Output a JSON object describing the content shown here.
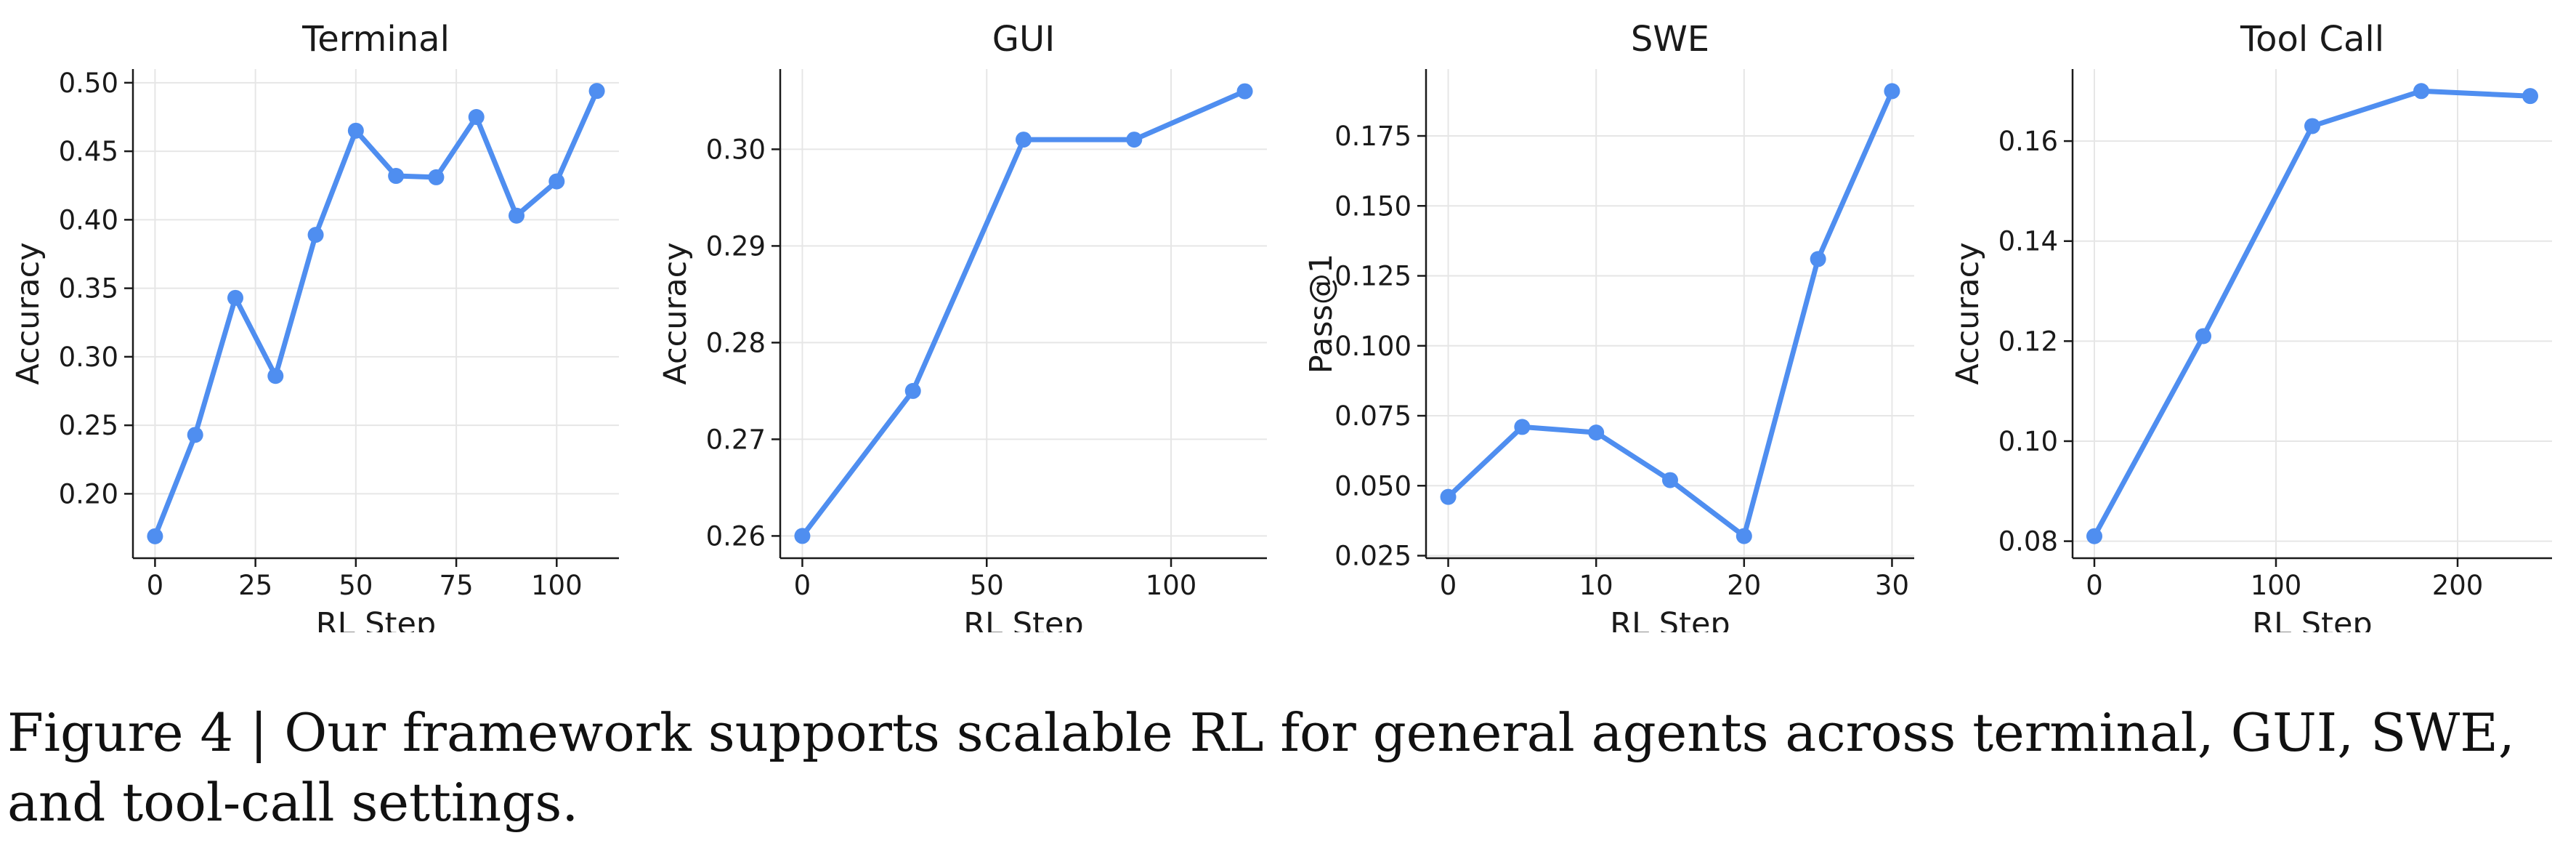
{
  "chart_data": [
    {
      "type": "line",
      "title": "Terminal",
      "xlabel": "RL Step",
      "ylabel": "Accuracy",
      "x": [
        0,
        10,
        20,
        30,
        40,
        50,
        60,
        70,
        80,
        90,
        100,
        110
      ],
      "series": [
        {
          "values": [
            0.169,
            0.243,
            0.343,
            0.286,
            0.389,
            0.465,
            0.432,
            0.431,
            0.475,
            0.403,
            0.428,
            0.494
          ]
        }
      ],
      "xlim": [
        -5.5,
        115.5
      ],
      "ylim": [
        0.153,
        0.51
      ],
      "xticks": [
        0,
        25,
        50,
        75,
        100
      ],
      "yticks": [
        0.2,
        0.25,
        0.3,
        0.35,
        0.4,
        0.45,
        0.5
      ],
      "ytick_decimals": 2,
      "grid": true
    },
    {
      "type": "line",
      "title": "GUI",
      "xlabel": "RL Step",
      "ylabel": "Accuracy",
      "x": [
        0,
        30,
        60,
        90,
        120
      ],
      "series": [
        {
          "values": [
            0.26,
            0.275,
            0.301,
            0.301,
            0.306
          ]
        }
      ],
      "xlim": [
        -6,
        126
      ],
      "ylim": [
        0.2577,
        0.3083
      ],
      "xticks": [
        0,
        50,
        100
      ],
      "yticks": [
        0.26,
        0.27,
        0.28,
        0.29,
        0.3
      ],
      "ytick_decimals": 2,
      "grid": true
    },
    {
      "type": "line",
      "title": "SWE",
      "xlabel": "RL Step",
      "ylabel": "Pass@1",
      "x": [
        0,
        5,
        10,
        15,
        20,
        25,
        30
      ],
      "series": [
        {
          "values": [
            0.046,
            0.071,
            0.069,
            0.052,
            0.032,
            0.131,
            0.191
          ]
        }
      ],
      "xlim": [
        -1.5,
        31.5
      ],
      "ylim": [
        0.0241,
        0.1989
      ],
      "xticks": [
        0,
        10,
        20,
        30
      ],
      "yticks": [
        0.025,
        0.05,
        0.075,
        0.1,
        0.125,
        0.15,
        0.175
      ],
      "ytick_decimals": 3,
      "grid": true
    },
    {
      "type": "line",
      "title": "Tool Call",
      "xlabel": "RL Step",
      "ylabel": "Accuracy",
      "x": [
        0,
        60,
        120,
        180,
        240
      ],
      "series": [
        {
          "values": [
            0.081,
            0.121,
            0.163,
            0.17,
            0.169
          ]
        }
      ],
      "xlim": [
        -12,
        252
      ],
      "ylim": [
        0.0766,
        0.1744
      ],
      "xticks": [
        0,
        100,
        200
      ],
      "yticks": [
        0.08,
        0.1,
        0.12,
        0.14,
        0.16
      ],
      "ytick_decimals": 2,
      "grid": true
    }
  ],
  "style": {
    "line_color": "#4f8ef0"
  },
  "caption": "Figure 4 | Our framework supports scalable RL for general agents across terminal, GUI, SWE, and tool-call settings."
}
